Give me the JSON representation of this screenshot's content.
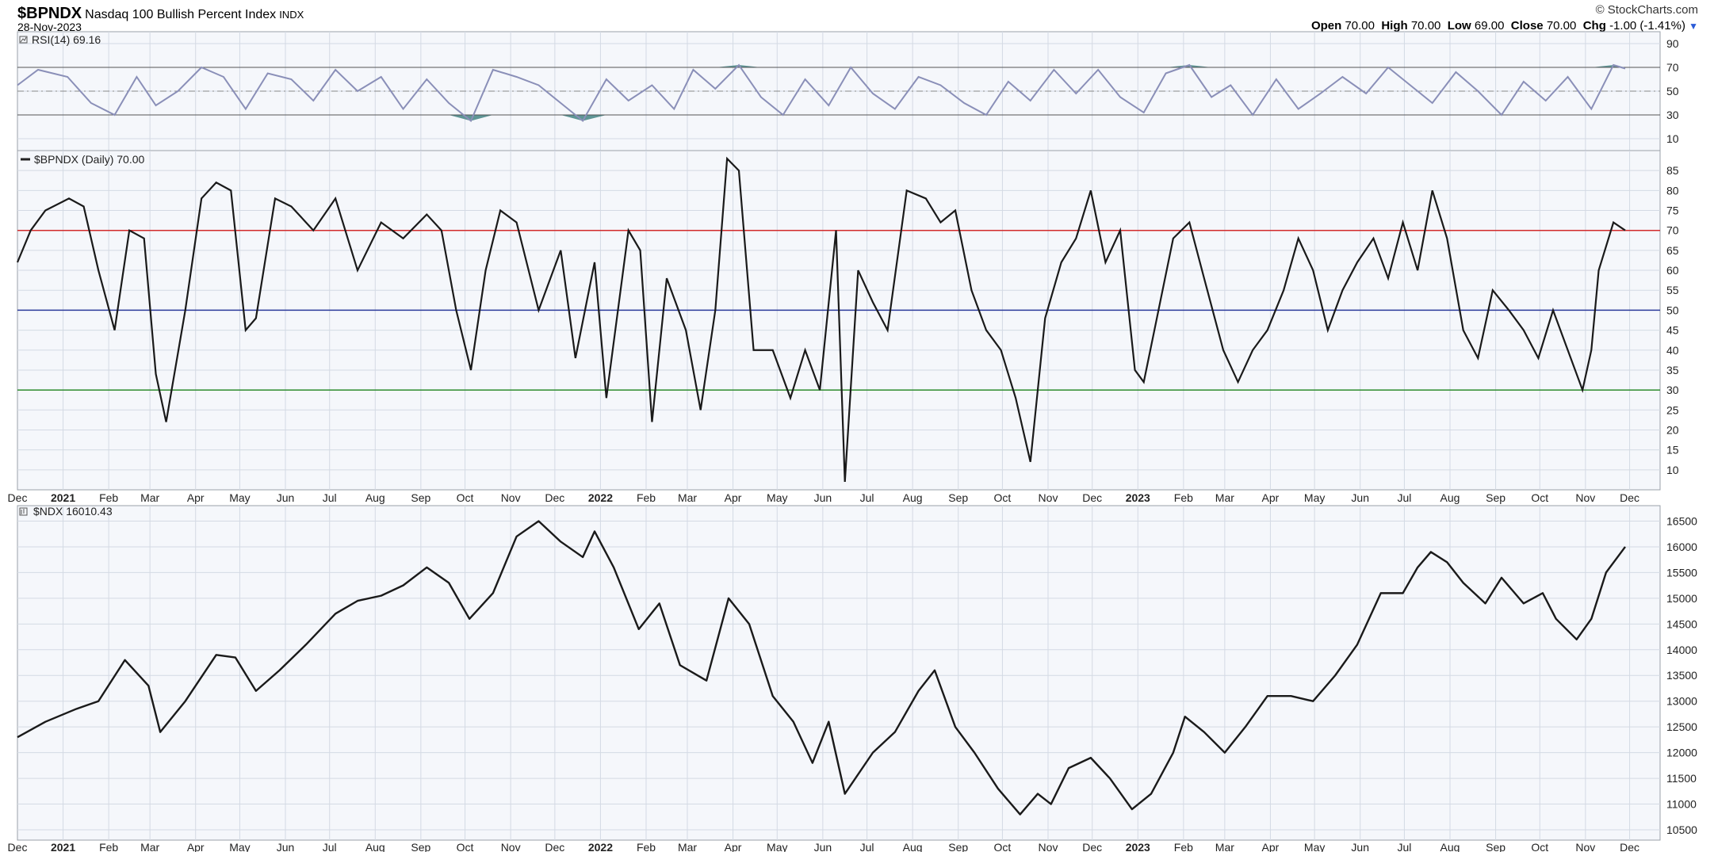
{
  "header": {
    "symbol": "$BPNDX",
    "name": "Nasdaq 100 Bullish Percent Index",
    "exchange": "INDX",
    "date": "28-Nov-2023",
    "brand": "© StockCharts.com",
    "open_label": "Open",
    "open": "70.00",
    "high_label": "High",
    "high": "70.00",
    "low_label": "Low",
    "low": "69.00",
    "close_label": "Close",
    "close": "70.00",
    "chg_label": "Chg",
    "chg": "-1.00 (-1.41%)"
  },
  "panels": {
    "rsi_legend": "RSI(14) 69.16",
    "bp_legend": "$BPNDX (Daily) 70.00",
    "ndx_legend": "$NDX 16010.43"
  },
  "colors": {
    "background": "#ffffff",
    "plot_bg": "#f5f7fb",
    "grid": "#d4dae4",
    "price_line": "#1a1a1a",
    "rsi_line": "#8a8fb8",
    "rsi_fill": "#5e9595",
    "line_70": "#d22b2b",
    "line_50": "#2b3a9a",
    "line_30": "#2e8b2e"
  },
  "chart_data": [
    {
      "type": "line",
      "title": "RSI(14) 69.16",
      "ylim": [
        0,
        100
      ],
      "yticks": [
        10,
        30,
        50,
        70,
        90
      ],
      "reference_lines": [
        30,
        50,
        70
      ],
      "x_start": "2020-12-01",
      "x_end": "2023-11-28",
      "series": [
        {
          "x": [
            "2020-12-01",
            "2020-12-15",
            "2021-01-04",
            "2021-01-20",
            "2021-02-05",
            "2021-02-20",
            "2021-03-05",
            "2021-03-20",
            "2021-04-05",
            "2021-04-20",
            "2021-05-05",
            "2021-05-20",
            "2021-06-05",
            "2021-06-20",
            "2021-07-05",
            "2021-07-20",
            "2021-08-05",
            "2021-08-20",
            "2021-09-05",
            "2021-09-20",
            "2021-10-05",
            "2021-10-20",
            "2021-11-05",
            "2021-11-20",
            "2021-12-05",
            "2021-12-20",
            "2022-01-05",
            "2022-01-20",
            "2022-02-05",
            "2022-02-20",
            "2022-03-05",
            "2022-03-20",
            "2022-04-05",
            "2022-04-20",
            "2022-05-05",
            "2022-05-20",
            "2022-06-05",
            "2022-06-20",
            "2022-07-05",
            "2022-07-20",
            "2022-08-05",
            "2022-08-20",
            "2022-09-05",
            "2022-09-20",
            "2022-10-05",
            "2022-10-20",
            "2022-11-05",
            "2022-11-20",
            "2022-12-05",
            "2022-12-20",
            "2023-01-05",
            "2023-01-20",
            "2023-02-05",
            "2023-02-20",
            "2023-03-05",
            "2023-03-20",
            "2023-04-05",
            "2023-04-20",
            "2023-05-05",
            "2023-05-20",
            "2023-06-05",
            "2023-06-20",
            "2023-07-05",
            "2023-07-20",
            "2023-08-05",
            "2023-08-20",
            "2023-09-05",
            "2023-09-20",
            "2023-10-05",
            "2023-10-20",
            "2023-11-05",
            "2023-11-20",
            "2023-11-28"
          ],
          "values": [
            55,
            68,
            62,
            40,
            30,
            62,
            38,
            50,
            70,
            62,
            35,
            65,
            60,
            42,
            68,
            50,
            62,
            35,
            60,
            40,
            25,
            68,
            62,
            55,
            40,
            25,
            60,
            42,
            55,
            35,
            68,
            52,
            72,
            45,
            30,
            60,
            38,
            70,
            48,
            35,
            62,
            55,
            40,
            30,
            58,
            42,
            68,
            48,
            68,
            45,
            32,
            65,
            72,
            45,
            55,
            30,
            60,
            35,
            48,
            62,
            48,
            70,
            55,
            40,
            66,
            50,
            30,
            58,
            42,
            62,
            35,
            72,
            69
          ]
        }
      ]
    },
    {
      "type": "line",
      "title": "$BPNDX (Daily) 70.00",
      "ylim": [
        5,
        90
      ],
      "yticks": [
        10,
        15,
        20,
        25,
        30,
        35,
        40,
        45,
        50,
        55,
        60,
        65,
        70,
        75,
        80,
        85
      ],
      "reference_lines": [
        30,
        50,
        70
      ],
      "x_axis_labels": [
        "Dec",
        "2021",
        "Feb",
        "Mar",
        "Apr",
        "May",
        "Jun",
        "Jul",
        "Aug",
        "Sep",
        "Oct",
        "Nov",
        "Dec",
        "2022",
        "Feb",
        "Mar",
        "Apr",
        "May",
        "Jun",
        "Jul",
        "Aug",
        "Sep",
        "Oct",
        "Nov",
        "Dec",
        "2023",
        "Feb",
        "Mar",
        "Apr",
        "May",
        "Jun",
        "Jul",
        "Aug",
        "Sep",
        "Oct",
        "Nov",
        "Dec"
      ],
      "series": [
        {
          "x": [
            "2020-12-01",
            "2020-12-10",
            "2020-12-20",
            "2021-01-05",
            "2021-01-15",
            "2021-01-25",
            "2021-02-05",
            "2021-02-15",
            "2021-02-25",
            "2021-03-05",
            "2021-03-12",
            "2021-03-25",
            "2021-04-05",
            "2021-04-15",
            "2021-04-25",
            "2021-05-05",
            "2021-05-12",
            "2021-05-25",
            "2021-06-05",
            "2021-06-20",
            "2021-07-05",
            "2021-07-20",
            "2021-08-05",
            "2021-08-20",
            "2021-09-05",
            "2021-09-15",
            "2021-09-25",
            "2021-10-05",
            "2021-10-15",
            "2021-10-25",
            "2021-11-05",
            "2021-11-20",
            "2021-12-05",
            "2021-12-15",
            "2021-12-28",
            "2022-01-05",
            "2022-01-20",
            "2022-01-28",
            "2022-02-05",
            "2022-02-15",
            "2022-02-28",
            "2022-03-10",
            "2022-03-20",
            "2022-03-28",
            "2022-04-05",
            "2022-04-15",
            "2022-04-28",
            "2022-05-10",
            "2022-05-20",
            "2022-05-30",
            "2022-06-10",
            "2022-06-16",
            "2022-06-25",
            "2022-07-05",
            "2022-07-15",
            "2022-07-28",
            "2022-08-10",
            "2022-08-20",
            "2022-08-30",
            "2022-09-10",
            "2022-09-20",
            "2022-09-30",
            "2022-10-10",
            "2022-10-20",
            "2022-10-30",
            "2022-11-10",
            "2022-11-20",
            "2022-11-30",
            "2022-12-10",
            "2022-12-20",
            "2022-12-30",
            "2023-01-05",
            "2023-01-15",
            "2023-01-25",
            "2023-02-05",
            "2023-02-15",
            "2023-02-28",
            "2023-03-10",
            "2023-03-20",
            "2023-03-30",
            "2023-04-10",
            "2023-04-20",
            "2023-04-30",
            "2023-05-10",
            "2023-05-20",
            "2023-05-30",
            "2023-06-10",
            "2023-06-20",
            "2023-06-30",
            "2023-07-10",
            "2023-07-20",
            "2023-07-30",
            "2023-08-10",
            "2023-08-20",
            "2023-08-30",
            "2023-09-10",
            "2023-09-20",
            "2023-09-30",
            "2023-10-10",
            "2023-10-20",
            "2023-10-30",
            "2023-11-05",
            "2023-11-10",
            "2023-11-20",
            "2023-11-28"
          ],
          "values": [
            62,
            70,
            75,
            78,
            76,
            60,
            45,
            70,
            68,
            34,
            22,
            50,
            78,
            82,
            80,
            45,
            48,
            78,
            76,
            70,
            78,
            60,
            72,
            68,
            74,
            70,
            50,
            35,
            60,
            75,
            72,
            50,
            65,
            38,
            62,
            28,
            70,
            65,
            22,
            58,
            45,
            25,
            50,
            88,
            85,
            40,
            40,
            28,
            40,
            30,
            70,
            7,
            60,
            52,
            45,
            80,
            78,
            72,
            75,
            55,
            45,
            40,
            28,
            12,
            48,
            62,
            68,
            80,
            62,
            70,
            35,
            32,
            50,
            68,
            72,
            58,
            40,
            32,
            40,
            45,
            55,
            68,
            60,
            45,
            55,
            62,
            68,
            58,
            72,
            60,
            80,
            68,
            45,
            38,
            55,
            50,
            45,
            38,
            50,
            40,
            30,
            40,
            60,
            72,
            70
          ]
        }
      ]
    },
    {
      "type": "line",
      "title": "$NDX 16010.43",
      "ylim": [
        10300,
        16800
      ],
      "yticks": [
        10500,
        11000,
        11500,
        12000,
        12500,
        13000,
        13500,
        14000,
        14500,
        15000,
        15500,
        16000,
        16500
      ],
      "series": [
        {
          "x": [
            "2020-12-01",
            "2020-12-20",
            "2021-01-10",
            "2021-01-25",
            "2021-02-12",
            "2021-02-28",
            "2021-03-08",
            "2021-03-25",
            "2021-04-15",
            "2021-04-28",
            "2021-05-12",
            "2021-05-28",
            "2021-06-15",
            "2021-07-05",
            "2021-07-20",
            "2021-08-05",
            "2021-08-20",
            "2021-09-05",
            "2021-09-20",
            "2021-10-04",
            "2021-10-20",
            "2021-11-05",
            "2021-11-20",
            "2021-12-05",
            "2021-12-20",
            "2021-12-28",
            "2022-01-10",
            "2022-01-27",
            "2022-02-10",
            "2022-02-24",
            "2022-03-14",
            "2022-03-29",
            "2022-04-12",
            "2022-04-28",
            "2022-05-12",
            "2022-05-25",
            "2022-06-05",
            "2022-06-16",
            "2022-07-05",
            "2022-07-20",
            "2022-08-05",
            "2022-08-16",
            "2022-08-30",
            "2022-09-12",
            "2022-09-28",
            "2022-10-13",
            "2022-10-25",
            "2022-11-03",
            "2022-11-15",
            "2022-11-30",
            "2022-12-13",
            "2022-12-28",
            "2023-01-10",
            "2023-01-25",
            "2023-02-02",
            "2023-02-15",
            "2023-03-01",
            "2023-03-15",
            "2023-03-30",
            "2023-04-15",
            "2023-04-30",
            "2023-05-15",
            "2023-05-30",
            "2023-06-15",
            "2023-06-30",
            "2023-07-10",
            "2023-07-19",
            "2023-07-30",
            "2023-08-10",
            "2023-08-25",
            "2023-09-05",
            "2023-09-20",
            "2023-10-03",
            "2023-10-12",
            "2023-10-26",
            "2023-11-05",
            "2023-11-15",
            "2023-11-28"
          ],
          "values": [
            12300,
            12600,
            12850,
            13000,
            13800,
            13300,
            12400,
            13000,
            13900,
            13850,
            13200,
            13600,
            14100,
            14700,
            14950,
            15050,
            15250,
            15600,
            15300,
            14600,
            15100,
            16200,
            16500,
            16100,
            15800,
            16300,
            15600,
            14400,
            14900,
            13700,
            13400,
            15000,
            14500,
            13100,
            12600,
            11800,
            12600,
            11200,
            12000,
            12400,
            13200,
            13600,
            12500,
            12000,
            11300,
            10800,
            11200,
            11000,
            11700,
            11900,
            11500,
            10900,
            11200,
            12000,
            12700,
            12400,
            12000,
            12500,
            13100,
            13100,
            13000,
            13500,
            14100,
            15100,
            15100,
            15600,
            15900,
            15700,
            15300,
            14900,
            15400,
            14900,
            15100,
            14600,
            14200,
            14600,
            15500,
            16000
          ]
        }
      ]
    }
  ]
}
